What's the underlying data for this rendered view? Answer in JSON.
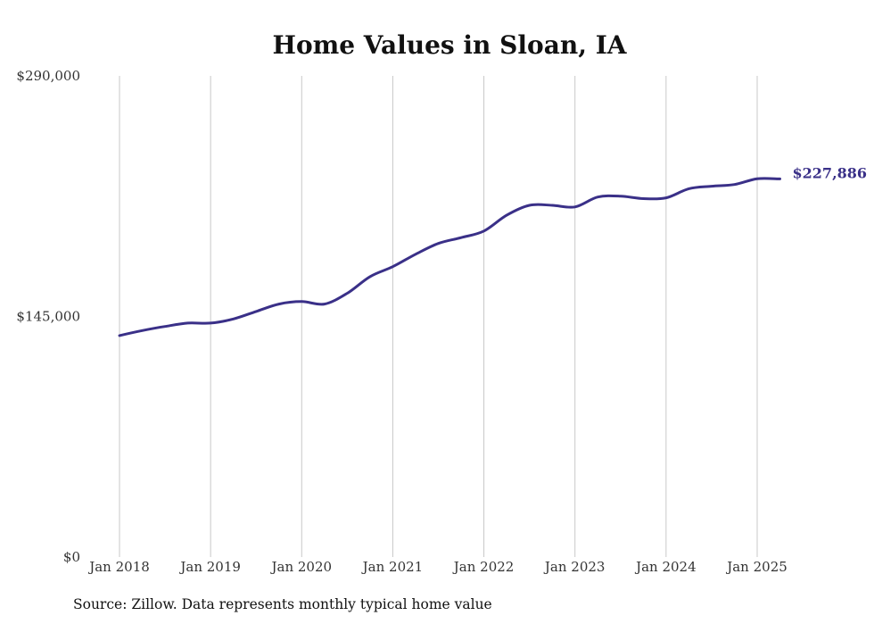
{
  "chart_data": {
    "type": "line",
    "title": "Home Values in Sloan, IA",
    "xlabel": "",
    "ylabel": "",
    "ylim": [
      0,
      290000
    ],
    "y_ticks": [
      {
        "value": 0,
        "label": "$0"
      },
      {
        "value": 145000,
        "label": "$145,000"
      },
      {
        "value": 290000,
        "label": "$290,000"
      }
    ],
    "x_ticks": [
      "Jan 2018",
      "Jan 2019",
      "Jan 2020",
      "Jan 2021",
      "Jan 2022",
      "Jan 2023",
      "Jan 2024",
      "Jan 2025"
    ],
    "grid": "vertical",
    "series": [
      {
        "color": "#3a3088",
        "points": [
          {
            "x": "2018-01",
            "y": 133500
          },
          {
            "x": "2018-04",
            "y": 136500
          },
          {
            "x": "2018-07",
            "y": 139000
          },
          {
            "x": "2018-10",
            "y": 141000
          },
          {
            "x": "2019-01",
            "y": 141000
          },
          {
            "x": "2019-04",
            "y": 143500
          },
          {
            "x": "2019-07",
            "y": 148000
          },
          {
            "x": "2019-10",
            "y": 152500
          },
          {
            "x": "2020-01",
            "y": 154000
          },
          {
            "x": "2020-04",
            "y": 152500
          },
          {
            "x": "2020-07",
            "y": 159000
          },
          {
            "x": "2020-10",
            "y": 169000
          },
          {
            "x": "2021-01",
            "y": 175000
          },
          {
            "x": "2021-04",
            "y": 182500
          },
          {
            "x": "2021-07",
            "y": 189000
          },
          {
            "x": "2021-10",
            "y": 192500
          },
          {
            "x": "2022-01",
            "y": 196500
          },
          {
            "x": "2022-04",
            "y": 206000
          },
          {
            "x": "2022-07",
            "y": 212000
          },
          {
            "x": "2022-10",
            "y": 212000
          },
          {
            "x": "2023-01",
            "y": 211000
          },
          {
            "x": "2023-04",
            "y": 217000
          },
          {
            "x": "2023-07",
            "y": 217500
          },
          {
            "x": "2023-10",
            "y": 216000
          },
          {
            "x": "2024-01",
            "y": 216500
          },
          {
            "x": "2024-04",
            "y": 222000
          },
          {
            "x": "2024-07",
            "y": 223500
          },
          {
            "x": "2024-10",
            "y": 224500
          },
          {
            "x": "2025-01",
            "y": 228000
          },
          {
            "x": "2025-04",
            "y": 227886
          }
        ],
        "end_label": "$227,886"
      }
    ],
    "source": "Source: Zillow. Data represents monthly typical home value"
  }
}
